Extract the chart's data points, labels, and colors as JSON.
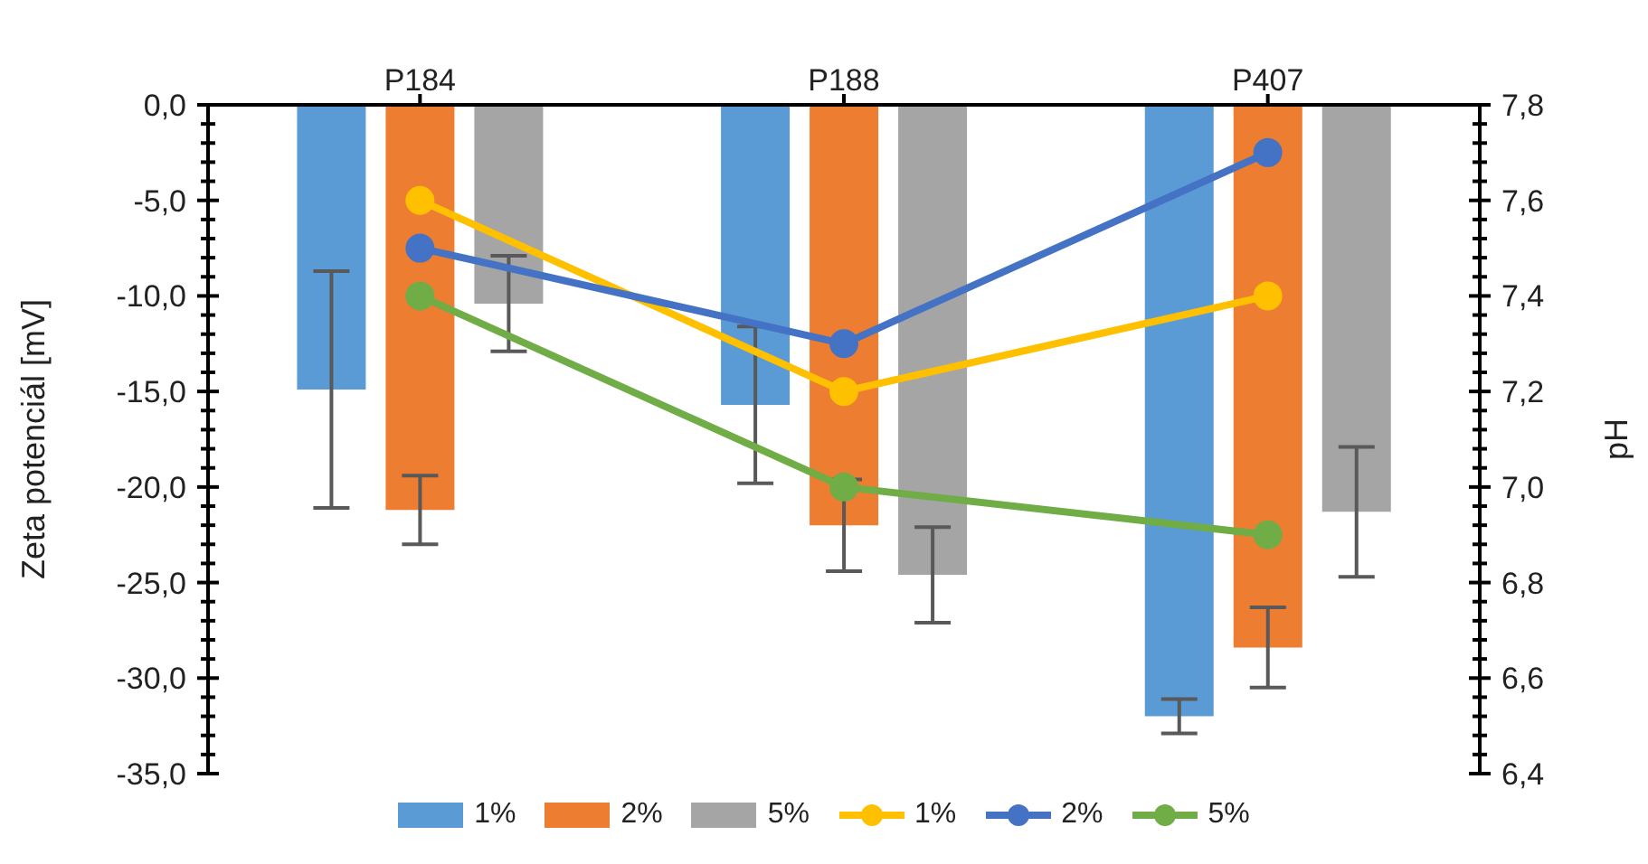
{
  "chart_data": {
    "type": "bar",
    "xlabel": null,
    "ylabel": "Zeta potenciál [mV]",
    "y2label": "pH",
    "categories": [
      "P184",
      "P188",
      "P407"
    ],
    "series": [
      {
        "name": "1%",
        "color": "#5b9bd5",
        "values": [
          -14.9,
          -15.7,
          -32.0
        ],
        "errors": [
          6.2,
          4.1,
          0.9
        ]
      },
      {
        "name": "2%",
        "color": "#ed7d31",
        "values": [
          -21.2,
          -22.0,
          -28.4
        ],
        "errors": [
          1.8,
          2.4,
          2.1
        ]
      },
      {
        "name": "5%",
        "color": "#a5a5a5",
        "values": [
          -10.4,
          -24.6,
          -21.3
        ],
        "errors": [
          2.5,
          2.5,
          3.4
        ]
      },
      {
        "name": "1%",
        "type": "line",
        "axis": "y2",
        "color": "#ffc000",
        "values": [
          7.6,
          7.2,
          7.4
        ]
      },
      {
        "name": "2%",
        "type": "line",
        "axis": "y2",
        "color": "#4472c4",
        "values": [
          7.5,
          7.3,
          7.7
        ]
      },
      {
        "name": "5%",
        "type": "line",
        "axis": "y2",
        "color": "#70ad47",
        "values": [
          7.4,
          7.0,
          6.9
        ]
      }
    ],
    "ylim": [
      -35,
      0
    ],
    "yticks": [
      {
        "value": -35,
        "label": "-35,0"
      },
      {
        "value": -34,
        "label": null
      },
      {
        "value": -33,
        "label": null
      },
      {
        "value": -32,
        "label": null
      },
      {
        "value": -31,
        "label": null
      },
      {
        "value": -30,
        "label": "-30,0"
      },
      {
        "value": -29,
        "label": null
      },
      {
        "value": -28,
        "label": null
      },
      {
        "value": -27,
        "label": null
      },
      {
        "value": -26,
        "label": null
      },
      {
        "value": -25,
        "label": "-25,0"
      },
      {
        "value": -24,
        "label": null
      },
      {
        "value": -23,
        "label": null
      },
      {
        "value": -22,
        "label": null
      },
      {
        "value": -21,
        "label": null
      },
      {
        "value": -20,
        "label": "-20,0"
      },
      {
        "value": -19,
        "label": null
      },
      {
        "value": -18,
        "label": null
      },
      {
        "value": -17,
        "label": null
      },
      {
        "value": -16,
        "label": null
      },
      {
        "value": -15,
        "label": "-15,0"
      },
      {
        "value": -14,
        "label": null
      },
      {
        "value": -13,
        "label": null
      },
      {
        "value": -12,
        "label": null
      },
      {
        "value": -11,
        "label": null
      },
      {
        "value": -10,
        "label": "-10,0"
      },
      {
        "value": -9,
        "label": null
      },
      {
        "value": -8,
        "label": null
      },
      {
        "value": -7,
        "label": null
      },
      {
        "value": -6,
        "label": null
      },
      {
        "value": -5,
        "label": "-5,0"
      },
      {
        "value": -4,
        "label": null
      },
      {
        "value": -3,
        "label": null
      },
      {
        "value": -2,
        "label": null
      },
      {
        "value": -1,
        "label": null
      },
      {
        "value": 0,
        "label": "0,0"
      }
    ],
    "y2lim": [
      6.4,
      7.8
    ],
    "y2ticks": [
      {
        "value": 6.4,
        "label": "6,4"
      },
      {
        "value": 6.44,
        "label": null
      },
      {
        "value": 6.48,
        "label": null
      },
      {
        "value": 6.52,
        "label": null
      },
      {
        "value": 6.56,
        "label": null
      },
      {
        "value": 6.6,
        "label": "6,6"
      },
      {
        "value": 6.64,
        "label": null
      },
      {
        "value": 6.68,
        "label": null
      },
      {
        "value": 6.72,
        "label": null
      },
      {
        "value": 6.76,
        "label": null
      },
      {
        "value": 6.8,
        "label": "6,8"
      },
      {
        "value": 6.84,
        "label": null
      },
      {
        "value": 6.88,
        "label": null
      },
      {
        "value": 6.92,
        "label": null
      },
      {
        "value": 6.96,
        "label": null
      },
      {
        "value": 7.0,
        "label": "7,0"
      },
      {
        "value": 7.04,
        "label": null
      },
      {
        "value": 7.08,
        "label": null
      },
      {
        "value": 7.12,
        "label": null
      },
      {
        "value": 7.16,
        "label": null
      },
      {
        "value": 7.2,
        "label": "7,2"
      },
      {
        "value": 7.24,
        "label": null
      },
      {
        "value": 7.28,
        "label": null
      },
      {
        "value": 7.32,
        "label": null
      },
      {
        "value": 7.36,
        "label": null
      },
      {
        "value": 7.4,
        "label": "7,4"
      },
      {
        "value": 7.44,
        "label": null
      },
      {
        "value": 7.48,
        "label": null
      },
      {
        "value": 7.52,
        "label": null
      },
      {
        "value": 7.56,
        "label": null
      },
      {
        "value": 7.6,
        "label": "7,6"
      },
      {
        "value": 7.64,
        "label": null
      },
      {
        "value": 7.68,
        "label": null
      },
      {
        "value": 7.72,
        "label": null
      },
      {
        "value": 7.76,
        "label": null
      },
      {
        "value": 7.8,
        "label": "7,8"
      }
    ],
    "marker": "circle",
    "grid": false,
    "legend": "bottom"
  }
}
